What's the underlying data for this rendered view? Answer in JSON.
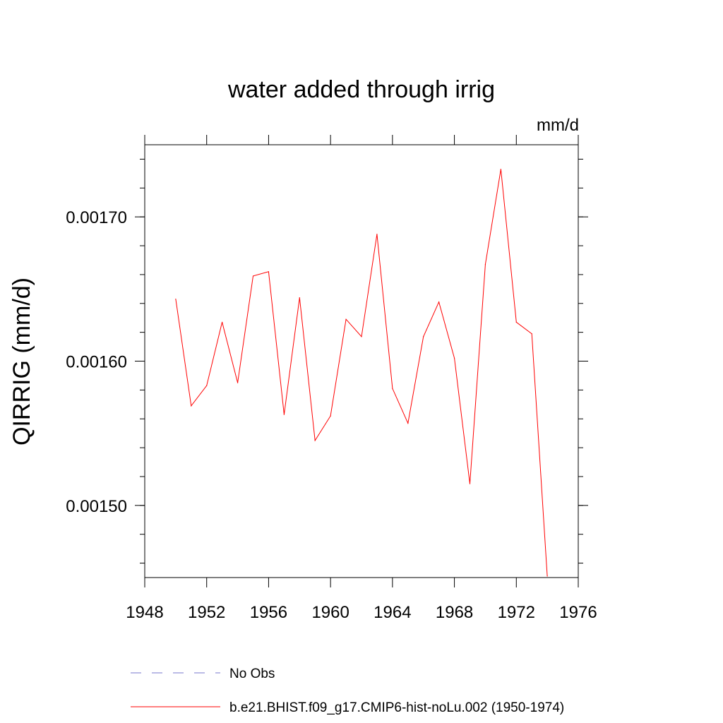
{
  "chart_data": {
    "type": "line",
    "title": "water added through irrig",
    "units_label": "mm/d",
    "xlabel": "",
    "ylabel": "QIRRIG  (mm/d)",
    "xlim": [
      1948,
      1976
    ],
    "ylim": [
      0.00145,
      0.00175
    ],
    "x_ticks": [
      1948,
      1952,
      1956,
      1960,
      1964,
      1968,
      1972,
      1976
    ],
    "x_tick_labels": [
      "1948",
      "1952",
      "1956",
      "1960",
      "1964",
      "1968",
      "1972",
      "1976"
    ],
    "y_ticks": [
      0.0015,
      0.0016,
      0.0017
    ],
    "y_tick_labels": [
      "0.00150",
      "0.00160",
      "0.00170"
    ],
    "grid": false,
    "legend_position": "bottom",
    "series": [
      {
        "name": "b.e21.BHIST.f09_g17.CMIP6-hist-noLu.002 (1950-1974)",
        "color": "#ff0000",
        "x": [
          1950,
          1951,
          1952,
          1953,
          1954,
          1955,
          1956,
          1957,
          1958,
          1959,
          1960,
          1961,
          1962,
          1963,
          1964,
          1965,
          1966,
          1967,
          1968,
          1969,
          1970,
          1971,
          1972,
          1973,
          1974
        ],
        "y": [
          0.001643,
          0.001569,
          0.001583,
          0.001627,
          0.001585,
          0.001659,
          0.001662,
          0.001563,
          0.001644,
          0.001545,
          0.001562,
          0.001629,
          0.001617,
          0.001688,
          0.001581,
          0.001557,
          0.001617,
          0.001641,
          0.001602,
          0.001515,
          0.001667,
          0.001733,
          0.001627,
          0.001619,
          0.001451
        ]
      }
    ],
    "legend": [
      {
        "label": "No Obs",
        "color": "#7777cc",
        "style": "dashed"
      },
      {
        "label": "b.e21.BHIST.f09_g17.CMIP6-hist-noLu.002 (1950-1974)",
        "color": "#ff0000",
        "style": "solid"
      }
    ]
  }
}
